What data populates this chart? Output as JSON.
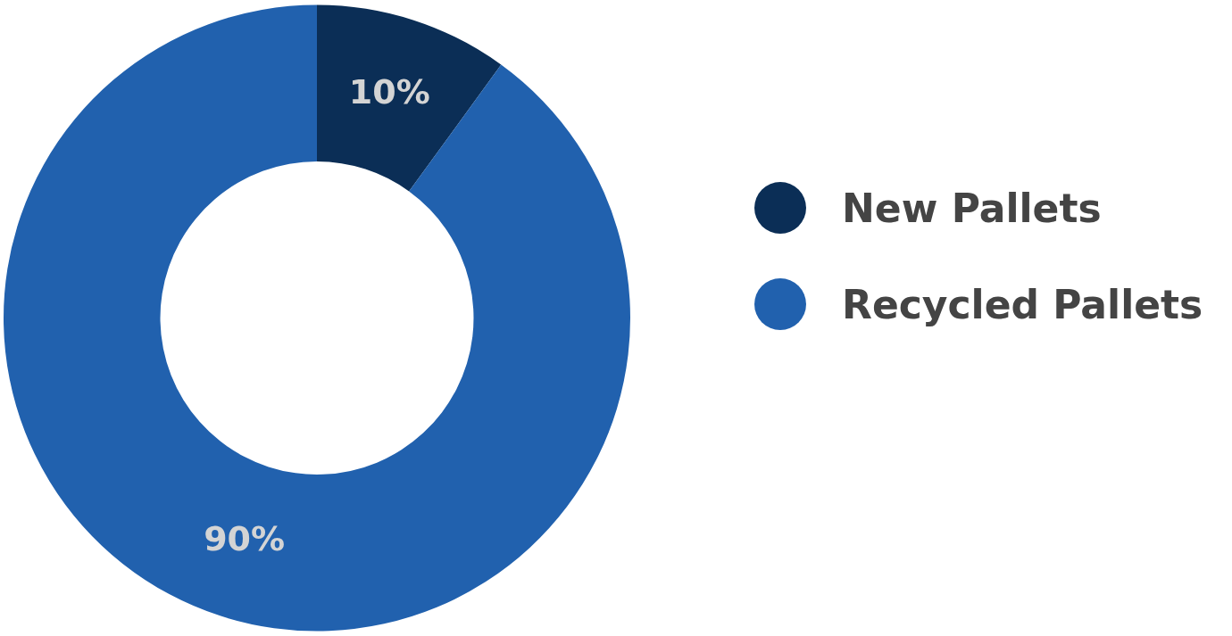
{
  "chart_data": {
    "type": "donut",
    "categories": [
      "New Pallets",
      "Recycled Pallets"
    ],
    "values": [
      10,
      90
    ],
    "colors": [
      "#0b2e56",
      "#2161ae"
    ],
    "value_labels": [
      "10%",
      "90%"
    ],
    "legend": "right"
  }
}
